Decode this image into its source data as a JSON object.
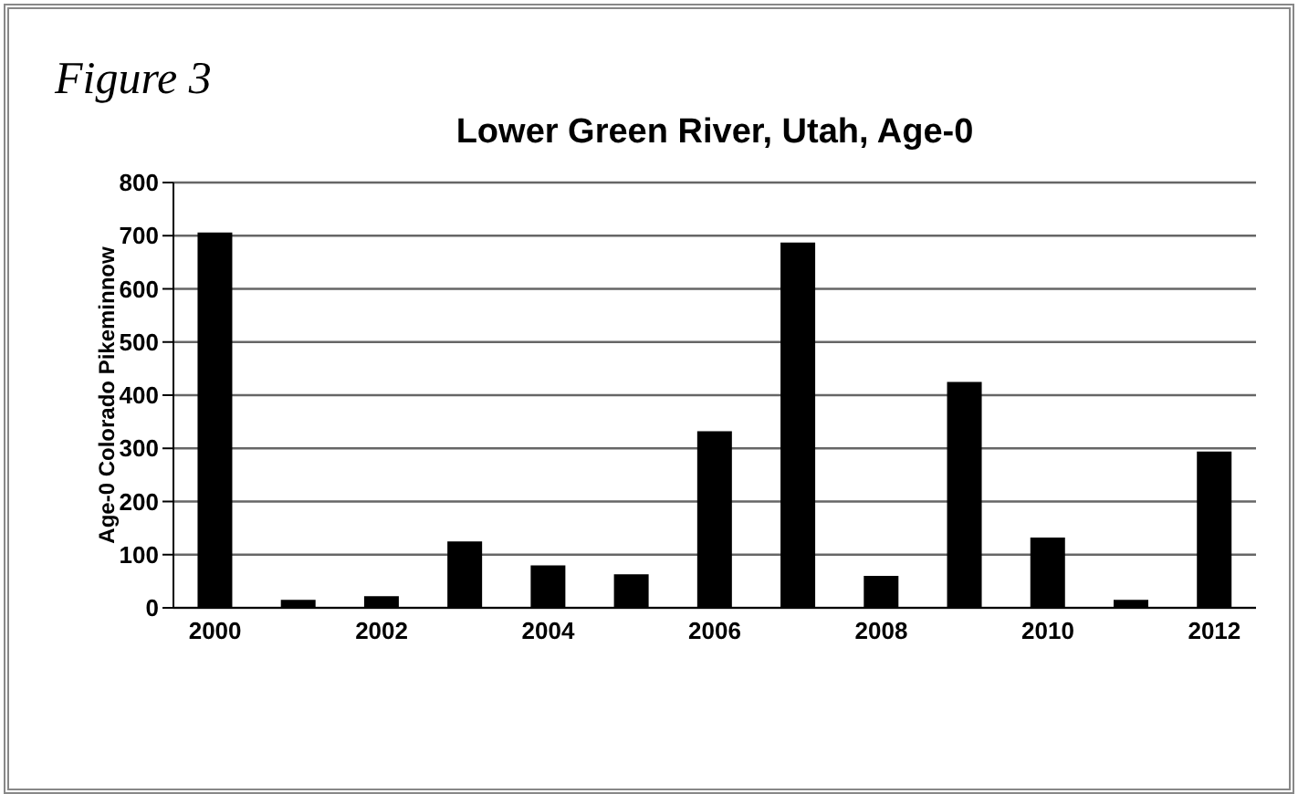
{
  "chart_data": {
    "type": "bar",
    "title": "Lower Green River, Utah, Age-0",
    "ylabel": "Age-0 Colorado Pikeminnow",
    "annotations": [
      "Figure 3"
    ],
    "categories": [
      "2000",
      null,
      "2002",
      null,
      "2004",
      null,
      "2006",
      null,
      "2008",
      null,
      "2010",
      null,
      "2012"
    ],
    "values": [
      706,
      15,
      22,
      125,
      80,
      63,
      332,
      687,
      60,
      425,
      132,
      15,
      294
    ],
    "color": "#000000",
    "ylim": [
      0,
      800
    ],
    "yticks": [
      0,
      100,
      200,
      300,
      400,
      500,
      600,
      700,
      800
    ],
    "grid": "y"
  }
}
